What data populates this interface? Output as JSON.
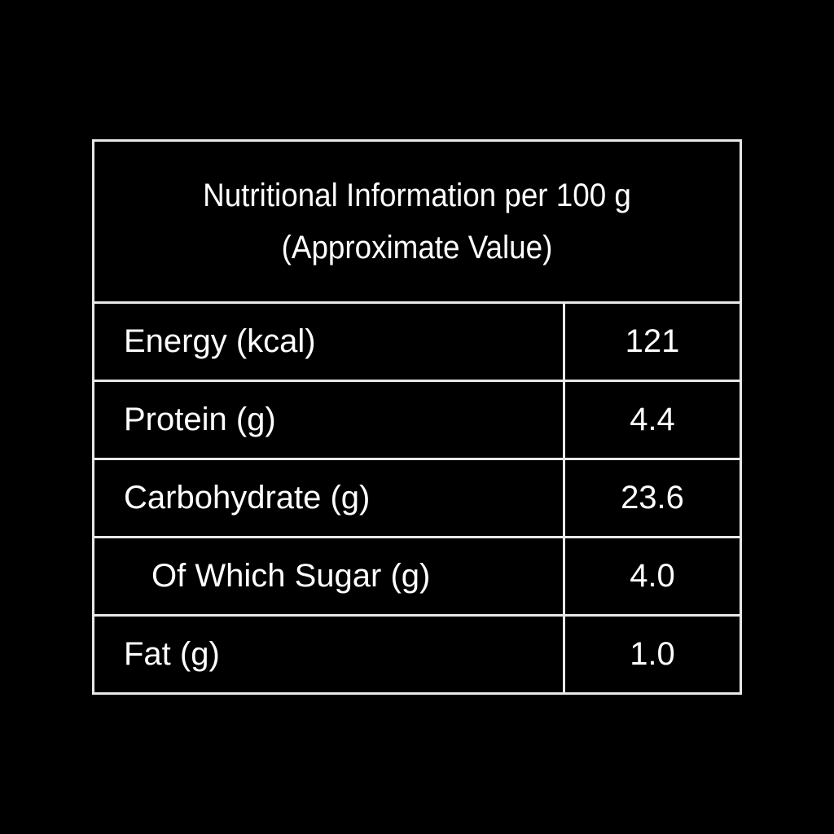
{
  "header": {
    "title": "Nutritional Information per 100 g",
    "subtitle": "(Approximate Value)"
  },
  "table": {
    "rows": [
      [
        "Energy (kcal)",
        "121"
      ],
      [
        "Protein (g)",
        "4.4"
      ],
      [
        "Carbohydrate (g)",
        "23.6"
      ],
      [
        "Of Which Sugar (g)",
        "4.0"
      ],
      [
        "Fat (g)",
        "1.0"
      ]
    ]
  }
}
